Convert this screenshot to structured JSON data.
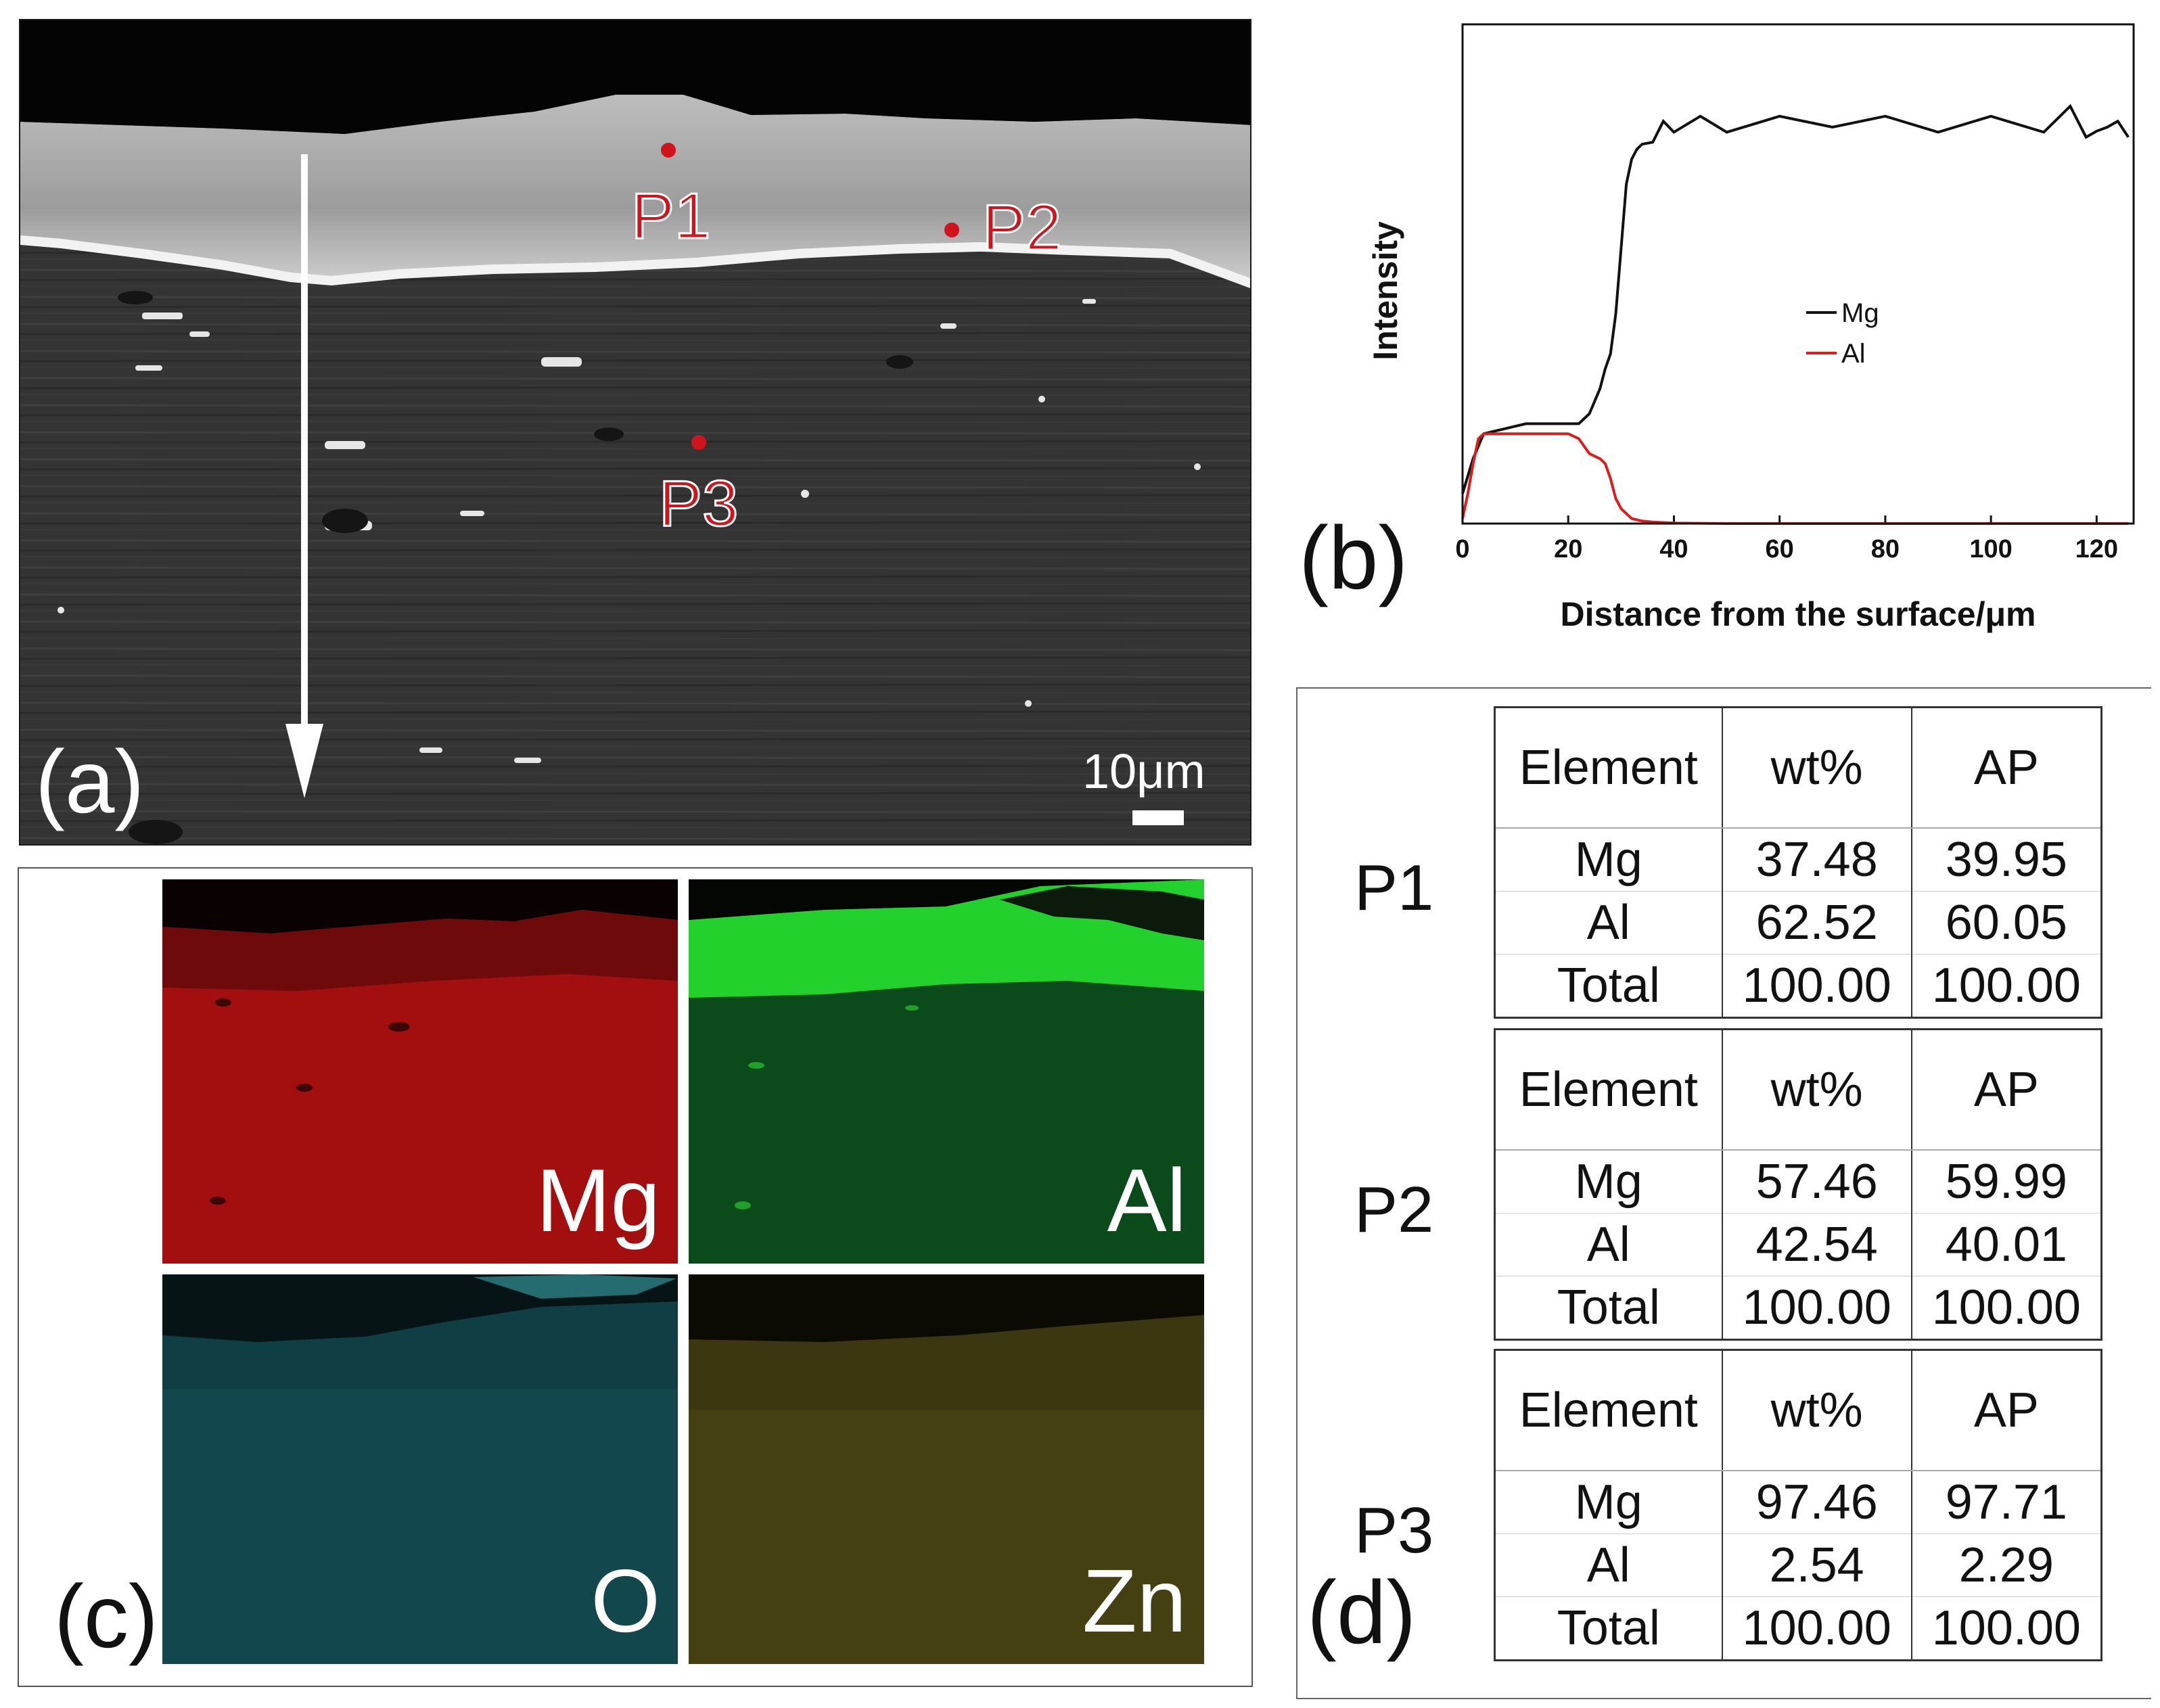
{
  "panel_a": {
    "letter": "(a)",
    "scale_bar": "10μm",
    "points": [
      {
        "label": "P1"
      },
      {
        "label": "P2"
      },
      {
        "label": "P3"
      }
    ],
    "colors": {
      "points": "#d0141c"
    }
  },
  "chart_data": {
    "type": "line",
    "letter": "(b)",
    "xlabel": "Distance from the surface/μm",
    "ylabel": "Intensity",
    "xlim": [
      0,
      127
    ],
    "ylim": [
      0,
      100
    ],
    "xticks": [
      "0",
      "20",
      "40",
      "60",
      "80",
      "100",
      "120"
    ],
    "legend_position": "center-right",
    "series": [
      {
        "name": "Mg",
        "color": "#111111",
        "x": [
          0,
          2,
          4,
          8,
          12,
          16,
          20,
          22,
          24,
          26,
          27,
          28,
          29,
          30,
          31,
          32,
          33,
          34,
          36,
          38,
          40,
          45,
          50,
          60,
          70,
          80,
          90,
          100,
          110,
          115,
          118,
          120,
          122,
          124,
          126
        ],
        "y": [
          6,
          13,
          18,
          19,
          20,
          20,
          20,
          20,
          22,
          27,
          31,
          34,
          42,
          55,
          68,
          73,
          75,
          76,
          78,
          79,
          80,
          80,
          80,
          80,
          81,
          80,
          80,
          80,
          80,
          82,
          79,
          77,
          81,
          79,
          79
        ]
      },
      {
        "name": "Al",
        "color": "#e01b1b",
        "x": [
          0,
          1,
          2,
          3,
          4,
          8,
          12,
          16,
          20,
          22,
          24,
          26,
          27,
          28,
          29,
          30,
          31,
          32,
          34,
          36,
          40,
          50,
          60,
          80,
          100,
          110,
          120,
          126
        ],
        "y": [
          1,
          6,
          12,
          17,
          18,
          18,
          18,
          18,
          18,
          17,
          14,
          13,
          12,
          9,
          5,
          3,
          2,
          1,
          0.5,
          0.3,
          0.1,
          0,
          0,
          0,
          0,
          0,
          0,
          0
        ]
      }
    ]
  },
  "panel_c": {
    "letter": "(c)",
    "maps": [
      {
        "label": "Mg",
        "color": "#a30f0f"
      },
      {
        "label": "Al",
        "color": "#0b4a1a"
      },
      {
        "label": "O",
        "color": "#0f3f45"
      },
      {
        "label": "Zn",
        "color": "#3b3710"
      }
    ]
  },
  "panel_d": {
    "letter": "(d)",
    "headers": [
      "Element",
      "wt%",
      "AP"
    ],
    "groups": [
      {
        "point": "P1",
        "rows": [
          [
            "Mg",
            "37.48",
            "39.95"
          ],
          [
            "Al",
            "62.52",
            "60.05"
          ],
          [
            "Total",
            "100.00",
            "100.00"
          ]
        ]
      },
      {
        "point": "P2",
        "rows": [
          [
            "Mg",
            "57.46",
            "59.99"
          ],
          [
            "Al",
            "42.54",
            "40.01"
          ],
          [
            "Total",
            "100.00",
            "100.00"
          ]
        ]
      },
      {
        "point": "P3",
        "rows": [
          [
            "Mg",
            "97.46",
            "97.71"
          ],
          [
            "Al",
            "2.54",
            "2.29"
          ],
          [
            "Total",
            "100.00",
            "100.00"
          ]
        ]
      }
    ]
  }
}
